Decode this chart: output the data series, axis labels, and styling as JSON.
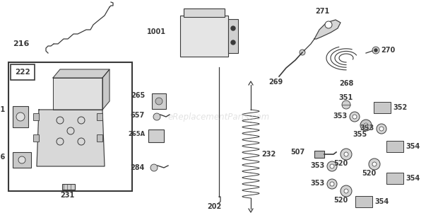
{
  "bg_color": "#ffffff",
  "watermark": "eReplacementParts.com",
  "gray": "#3a3a3a",
  "lgray": "#888888"
}
